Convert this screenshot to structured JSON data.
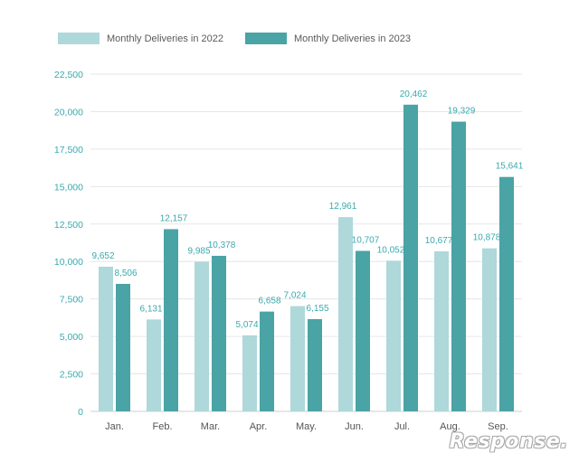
{
  "legend": [
    {
      "label": "Monthly Deliveries in 2022",
      "color": "#aed8da"
    },
    {
      "label": "Monthly Deliveries in 2023",
      "color": "#4aa3a5"
    }
  ],
  "watermark": "Response.",
  "chart_data": {
    "type": "bar",
    "categories": [
      "Jan.",
      "Feb.",
      "Mar.",
      "Apr.",
      "May.",
      "Jun.",
      "Jul.",
      "Aug.",
      "Sep."
    ],
    "series": [
      {
        "name": "Monthly Deliveries in 2022",
        "color": "#aed8da",
        "values": [
          9652,
          6131,
          9985,
          5074,
          7024,
          12961,
          10052,
          10677,
          10878
        ],
        "labels": [
          "9,652",
          "6,131",
          "9,985",
          "5,074",
          "7,024",
          "12,961",
          "10,052",
          "10,677",
          "10,878"
        ]
      },
      {
        "name": "Monthly Deliveries in 2023",
        "color": "#4aa3a5",
        "values": [
          8506,
          12157,
          10378,
          6658,
          6155,
          10707,
          20462,
          19329,
          15641
        ],
        "labels": [
          "8,506",
          "12,157",
          "10,378",
          "6,658",
          "6,155",
          "10,707",
          "20,462",
          "19,329",
          "15,641"
        ]
      }
    ],
    "y_ticks": [
      0,
      2500,
      5000,
      7500,
      10000,
      12500,
      15000,
      17500,
      20000,
      22500
    ],
    "y_tick_labels": [
      "0",
      "2,500",
      "5,000",
      "7,500",
      "10,000",
      "12,500",
      "15,000",
      "17,500",
      "20,000",
      "22,500"
    ],
    "ylim": [
      0,
      22500
    ],
    "grid": true,
    "legend_position": "top-left",
    "tick_label_color": "#3aa9ad",
    "data_label_color": "#3aa9ad",
    "grid_color": "#e6e6e6"
  }
}
